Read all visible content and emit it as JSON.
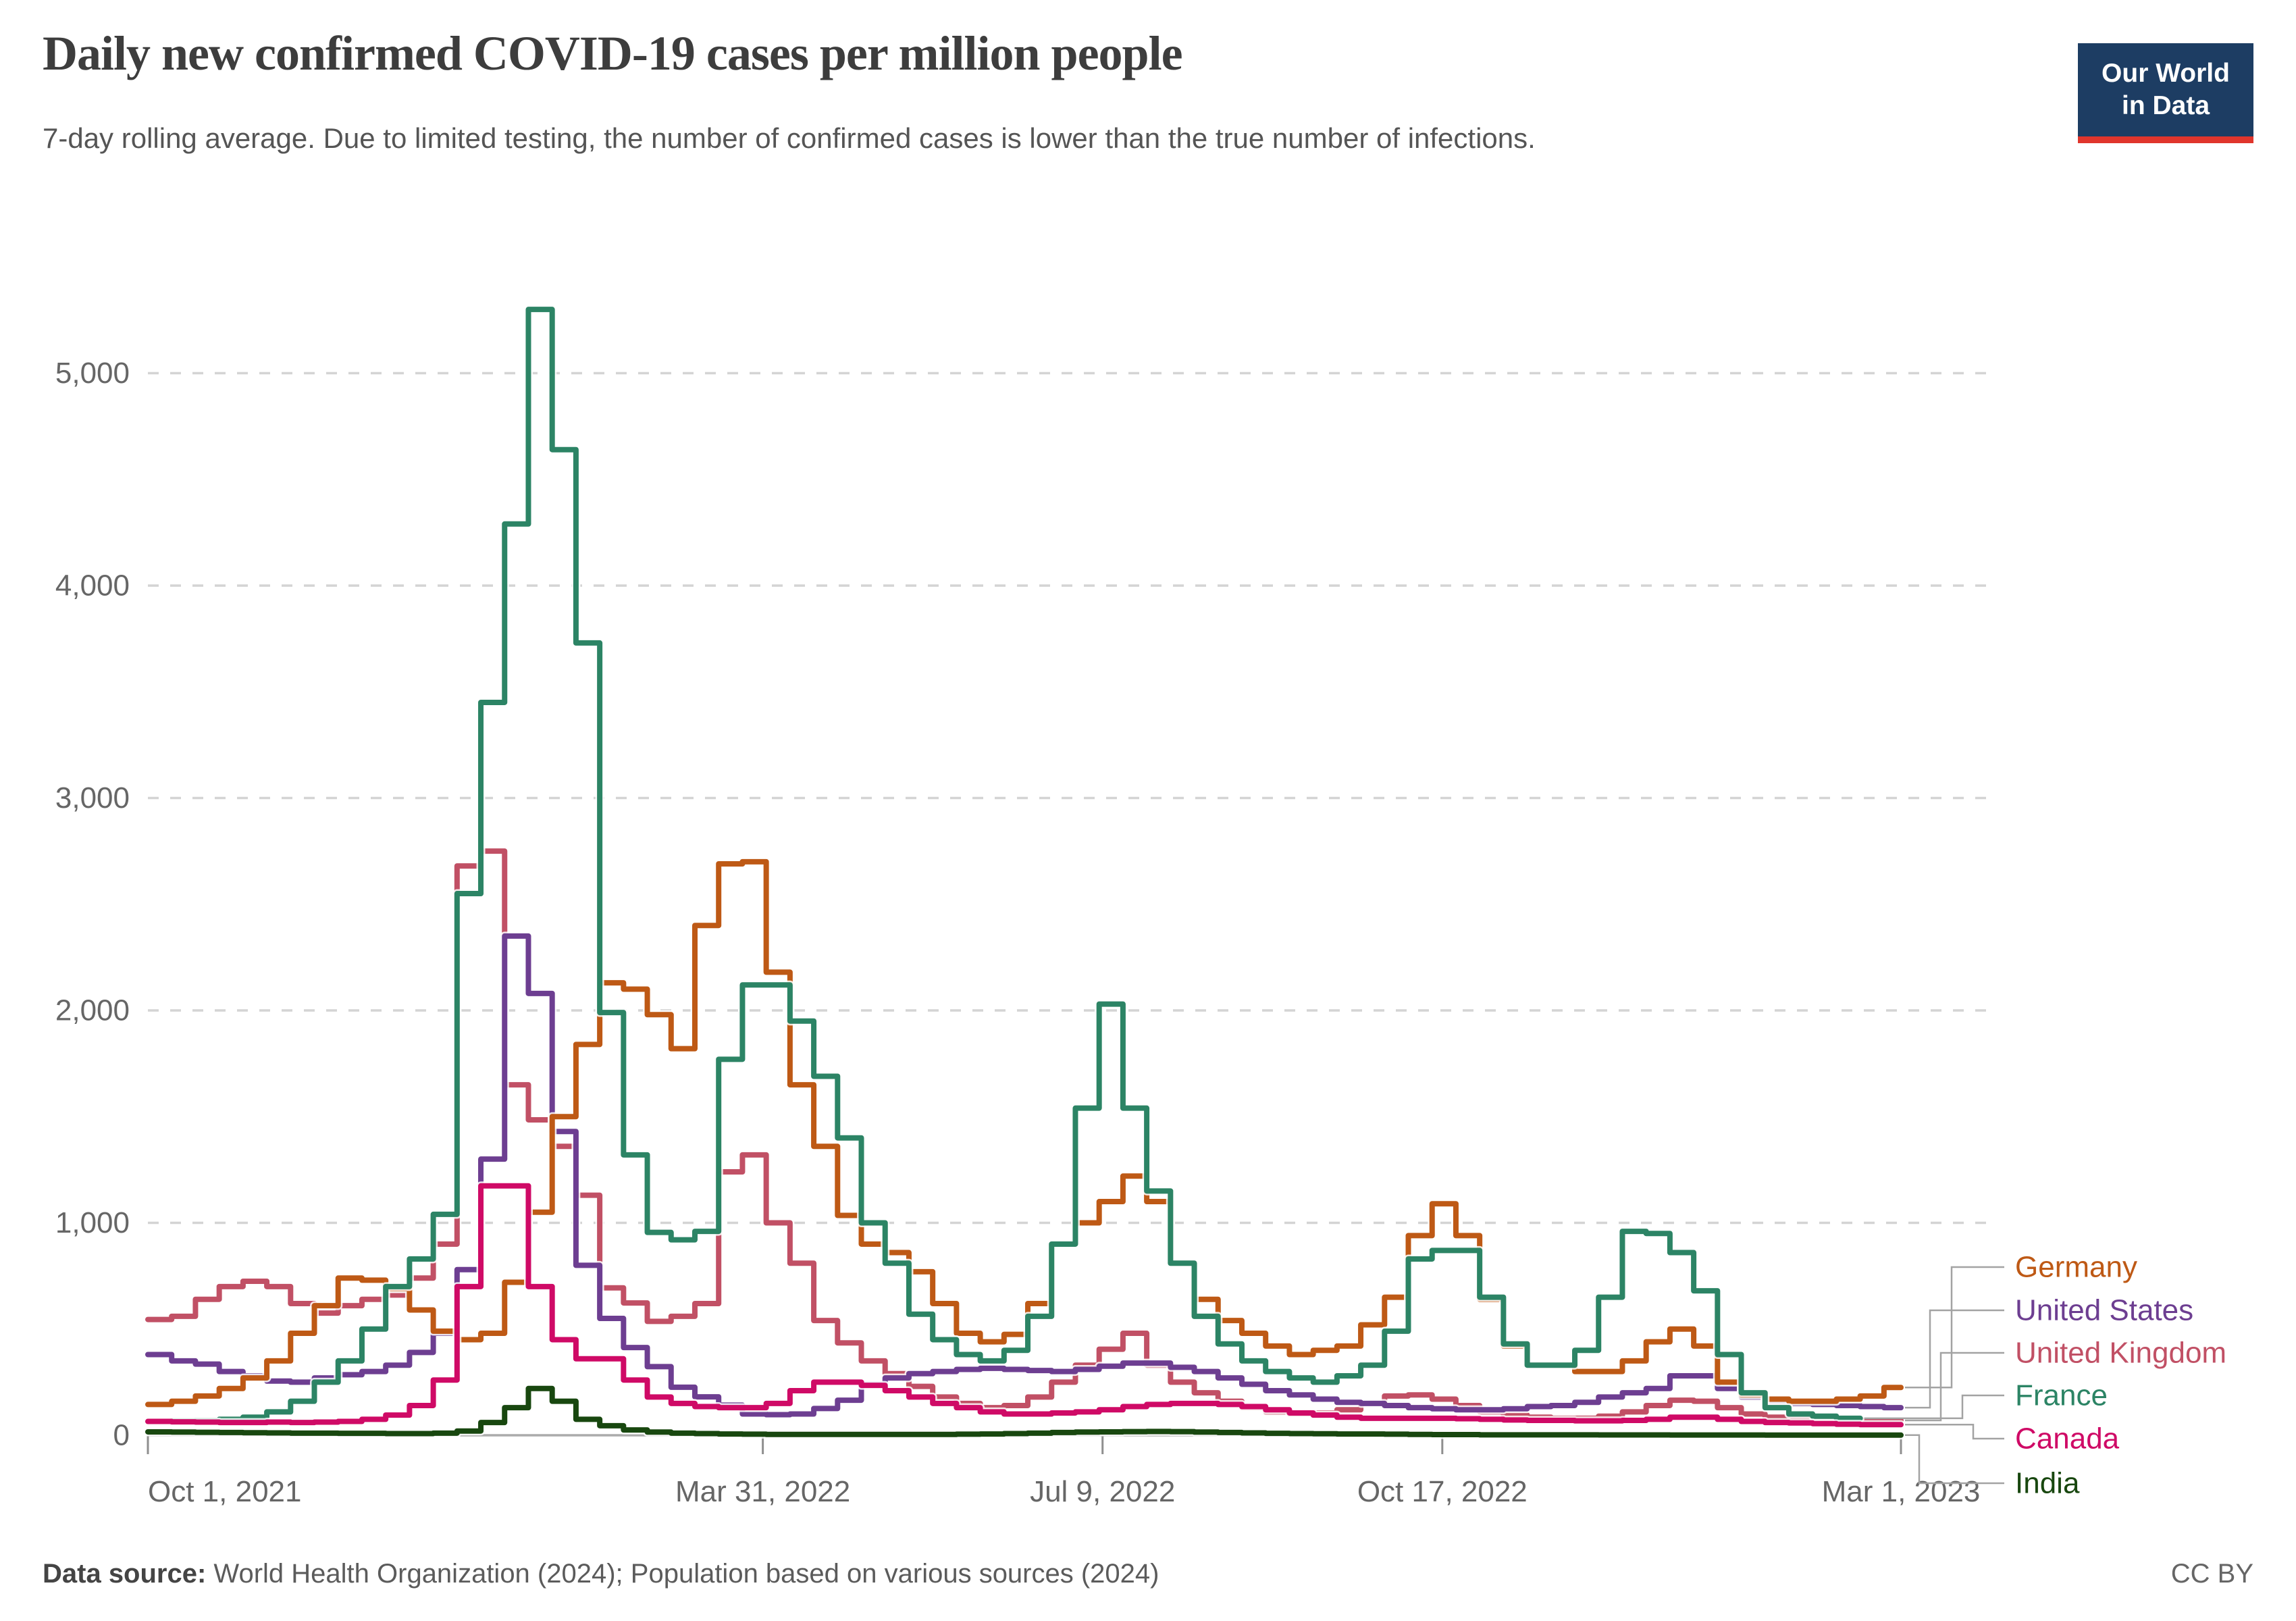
{
  "logo": {
    "line1": "Our World",
    "line2": "in Data",
    "bg_color": "#1d3d63",
    "accent_color": "#e0352c"
  },
  "footer": {
    "source_label": "Data source:",
    "source_text": " World Health Organization (2024); Population based on various sources (2024)",
    "license": "CC BY"
  },
  "chart_data": {
    "type": "line",
    "title": "Daily new confirmed COVID-19 cases per million people",
    "subtitle": "7-day rolling average. Due to limited testing, the number of confirmed cases is lower than the true number of infections.",
    "x_axis": {
      "tick_labels": [
        "Oct 1, 2021",
        "Mar 31, 2022",
        "Jul 9, 2022",
        "Oct 17, 2022",
        "Mar 1, 2023"
      ],
      "tick_days": [
        0,
        181,
        281,
        381,
        516
      ],
      "start_date": "Oct 1, 2021",
      "end_date": "Mar 1, 2023"
    },
    "y_axis": {
      "ticks": [
        0,
        1000,
        2000,
        3000,
        4000,
        5000
      ],
      "tick_labels": [
        "0",
        "1,000",
        "2,000",
        "3,000",
        "4,000",
        "5,000"
      ],
      "range": [
        0,
        5600
      ],
      "gridlines": "dashed"
    },
    "sampling": "weekly_steps",
    "legend_position": "right",
    "style": {
      "grid_color": "#d4d4d4",
      "zero_axis_color": "#ababab",
      "tick_color": "#8f8f8f",
      "axis_text_color": "#666666",
      "connector_color": "#a3a3a3"
    },
    "series": [
      {
        "name": "Germany",
        "color": "#BE5915",
        "values": [
          145,
          160,
          185,
          220,
          270,
          350,
          480,
          610,
          740,
          730,
          690,
          590,
          490,
          450,
          480,
          720,
          1050,
          1500,
          1840,
          2130,
          2100,
          1980,
          1820,
          2400,
          2690,
          2700,
          2180,
          1650,
          1360,
          1035,
          900,
          860,
          770,
          620,
          480,
          440,
          475,
          620,
          900,
          1000,
          1100,
          1220,
          1100,
          810,
          640,
          540,
          480,
          420,
          380,
          400,
          420,
          520,
          650,
          940,
          1090,
          940,
          640,
          420,
          330,
          330,
          300,
          300,
          350,
          440,
          500,
          420,
          250,
          190,
          170,
          160,
          160,
          170,
          185,
          225
        ]
      },
      {
        "name": "United States",
        "color": "#6D3E91",
        "values": [
          380,
          350,
          335,
          300,
          280,
          255,
          250,
          270,
          285,
          300,
          330,
          390,
          480,
          780,
          1300,
          2350,
          2080,
          1430,
          800,
          550,
          413,
          323,
          226,
          181,
          142,
          100,
          97,
          100,
          126,
          165,
          240,
          270,
          290,
          300,
          310,
          315,
          310,
          305,
          300,
          310,
          325,
          340,
          340,
          320,
          300,
          270,
          240,
          210,
          190,
          170,
          155,
          150,
          140,
          130,
          125,
          120,
          120,
          125,
          135,
          140,
          155,
          180,
          200,
          220,
          280,
          280,
          220,
          180,
          160,
          150,
          145,
          140,
          135,
          130
        ]
      },
      {
        "name": "United Kingdom",
        "color": "#C15065",
        "values": [
          545,
          560,
          640,
          700,
          725,
          700,
          620,
          575,
          610,
          640,
          660,
          740,
          900,
          2680,
          2750,
          1650,
          1485,
          1360,
          1130,
          694,
          623,
          536,
          560,
          620,
          1240,
          1320,
          1000,
          810,
          540,
          435,
          350,
          290,
          230,
          180,
          150,
          130,
          140,
          180,
          250,
          330,
          405,
          480,
          330,
          250,
          200,
          160,
          130,
          110,
          100,
          105,
          120,
          150,
          185,
          190,
          170,
          140,
          110,
          95,
          85,
          80,
          80,
          90,
          110,
          140,
          165,
          160,
          130,
          100,
          85,
          80,
          75,
          72,
          70,
          70
        ]
      },
      {
        "name": "France",
        "color": "#2C8465",
        "values": [
          65,
          68,
          70,
          75,
          85,
          110,
          160,
          250,
          350,
          500,
          700,
          830,
          1040,
          2550,
          3450,
          4290,
          5300,
          4640,
          3730,
          1990,
          1320,
          955,
          920,
          960,
          1770,
          2120,
          2120,
          1950,
          1690,
          1400,
          1000,
          810,
          570,
          450,
          380,
          350,
          400,
          560,
          900,
          1540,
          2030,
          1540,
          1150,
          810,
          560,
          430,
          350,
          300,
          270,
          250,
          280,
          330,
          490,
          830,
          870,
          870,
          650,
          430,
          330,
          330,
          400,
          650,
          960,
          950,
          860,
          680,
          380,
          200,
          130,
          100,
          90,
          80,
          null,
          null
        ]
      },
      {
        "name": "Canada",
        "color": "#CF0A66",
        "values": [
          65,
          63,
          62,
          60,
          60,
          62,
          60,
          62,
          65,
          75,
          95,
          140,
          260,
          700,
          1174,
          1174,
          700,
          450,
          360,
          360,
          260,
          180,
          150,
          135,
          130,
          130,
          150,
          210,
          250,
          250,
          235,
          210,
          180,
          150,
          130,
          110,
          100,
          100,
          105,
          110,
          120,
          135,
          145,
          150,
          150,
          145,
          135,
          120,
          105,
          95,
          85,
          80,
          80,
          80,
          80,
          78,
          75,
          72,
          70,
          70,
          68,
          68,
          70,
          75,
          85,
          85,
          75,
          65,
          60,
          58,
          55,
          52,
          50,
          50
        ]
      },
      {
        "name": "India",
        "color": "#18470F",
        "values": [
          16,
          15,
          14,
          13,
          12,
          11,
          10,
          10,
          9,
          9,
          8,
          8,
          10,
          20,
          60,
          130,
          220,
          160,
          75,
          45,
          25,
          15,
          10,
          8,
          6,
          5,
          4,
          4,
          4,
          4,
          4,
          4,
          4,
          4,
          5,
          6,
          8,
          10,
          13,
          15,
          16,
          17,
          18,
          17,
          15,
          13,
          11,
          9,
          8,
          7,
          6,
          6,
          5,
          4,
          3,
          3,
          2,
          2,
          2,
          2,
          2,
          1.5,
          1.5,
          1.5,
          1.2,
          1,
          1,
          1,
          0.8,
          0.8,
          0.7,
          0.7,
          0.6,
          0.6
        ]
      }
    ]
  }
}
